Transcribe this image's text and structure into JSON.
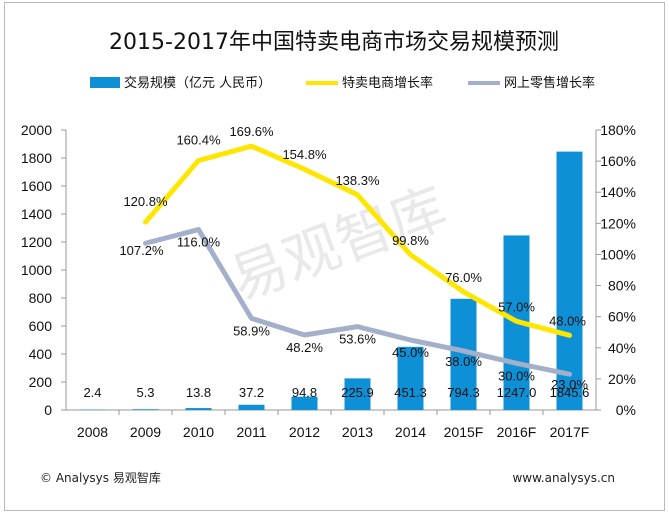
{
  "chart_data": {
    "type": "bar+line",
    "title": "2015-2017年中国特卖电商市场交易规模预测",
    "categories": [
      "2008",
      "2009",
      "2010",
      "2011",
      "2012",
      "2013",
      "2014",
      "2015F",
      "2016F",
      "2017F"
    ],
    "series": [
      {
        "name": "交易规模（亿元 人民币）",
        "type": "bar",
        "axis": "left",
        "color": "#0e90d6",
        "values": [
          2.4,
          5.3,
          13.8,
          37.2,
          94.8,
          225.9,
          451.3,
          794.3,
          1247.0,
          1845.6
        ],
        "labels": [
          "2.4",
          "5.3",
          "13.8",
          "37.2",
          "94.8",
          "225.9",
          "451.3",
          "794.3",
          "1247.0",
          "1845.6"
        ]
      },
      {
        "name": "特卖电商增长率",
        "type": "line",
        "axis": "right",
        "color": "#ffe600",
        "values": [
          null,
          120.8,
          160.4,
          169.6,
          154.8,
          138.3,
          99.8,
          76.0,
          57.0,
          48.0
        ],
        "labels": [
          "",
          "120.8%",
          "160.4%",
          "169.6%",
          "154.8%",
          "138.3%",
          "99.8%",
          "76.0%",
          "57.0%",
          "48.0%"
        ]
      },
      {
        "name": "网上零售增长率",
        "type": "line",
        "axis": "right",
        "color": "#a4b0c9",
        "values": [
          null,
          107.2,
          116.0,
          58.9,
          48.2,
          53.6,
          45.0,
          38.0,
          30.0,
          23.0
        ],
        "labels": [
          "",
          "107.2%",
          "116.0%",
          "58.9%",
          "48.2%",
          "53.6%",
          "45.0%",
          "38.0%",
          "30.0%",
          "23.0%"
        ]
      }
    ],
    "left_axis": {
      "ylim": [
        0,
        2000
      ],
      "ticks": [
        "0",
        "200",
        "400",
        "600",
        "800",
        "1000",
        "1200",
        "1400",
        "1600",
        "1800",
        "2000"
      ]
    },
    "right_axis": {
      "ylim": [
        0,
        180
      ],
      "ticks": [
        "0%",
        "20%",
        "40%",
        "60%",
        "80%",
        "100%",
        "120%",
        "140%",
        "160%",
        "180%"
      ]
    },
    "legend_position": "top"
  },
  "watermark": "易观智库",
  "footer": {
    "left": "© Analysys 易观智库",
    "right": "www.analysys.cn"
  }
}
